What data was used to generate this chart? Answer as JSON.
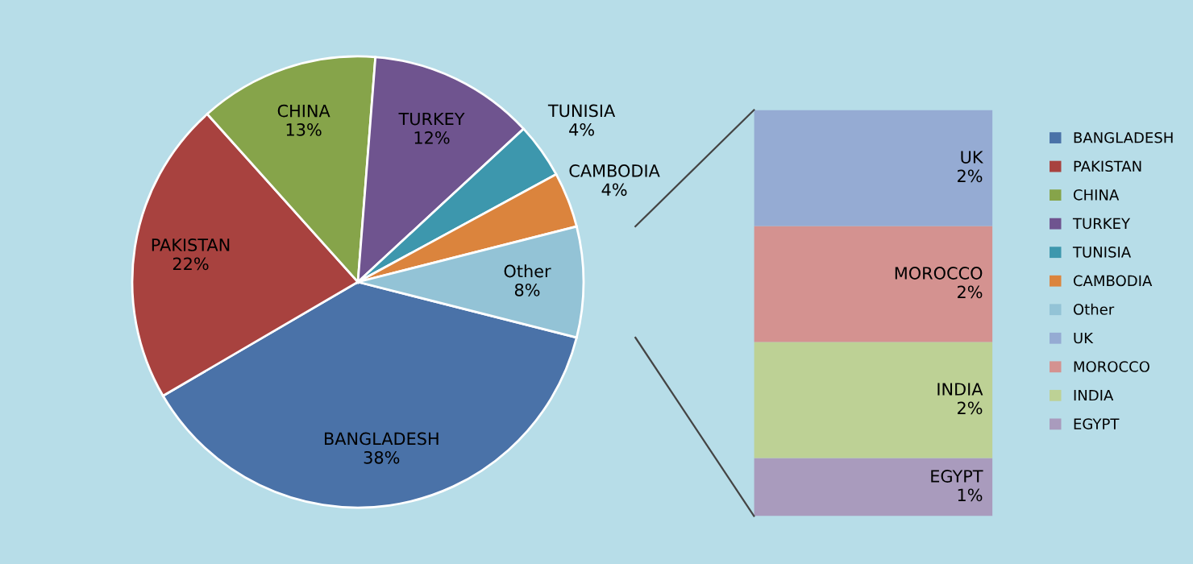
{
  "chart_data": [
    {
      "type": "pie",
      "categories": [
        "BANGLADESH",
        "PAKISTAN",
        "CHINA",
        "TURKEY",
        "TUNISIA",
        "CAMBODIA",
        "Other"
      ],
      "values": [
        38,
        22,
        13,
        12,
        4,
        4,
        8
      ],
      "colors": [
        "#4a72a8",
        "#a8423f",
        "#86a44a",
        "#6f548f",
        "#3d97ad",
        "#db843d",
        "#93c3d6"
      ],
      "value_labels": [
        "38%",
        "22%",
        "13%",
        "12%",
        "4%",
        "4%",
        "8%"
      ],
      "legend": "right"
    },
    {
      "type": "bar",
      "stacked": true,
      "categories": [
        null
      ],
      "tick_labels": false,
      "legend": "right",
      "series": [
        {
          "name": "EGYPT",
          "color": "#a99bbd",
          "values": [
            1
          ],
          "value_labels": [
            "1%"
          ]
        },
        {
          "name": "INDIA",
          "color": "#bdd195",
          "values": [
            2
          ],
          "value_labels": [
            "2%"
          ]
        },
        {
          "name": "MOROCCO",
          "color": "#d49290",
          "values": [
            2
          ],
          "value_labels": [
            "2%"
          ]
        },
        {
          "name": "UK",
          "color": "#95abd3",
          "values": [
            2
          ],
          "value_labels": [
            "2%"
          ]
        }
      ]
    }
  ]
}
